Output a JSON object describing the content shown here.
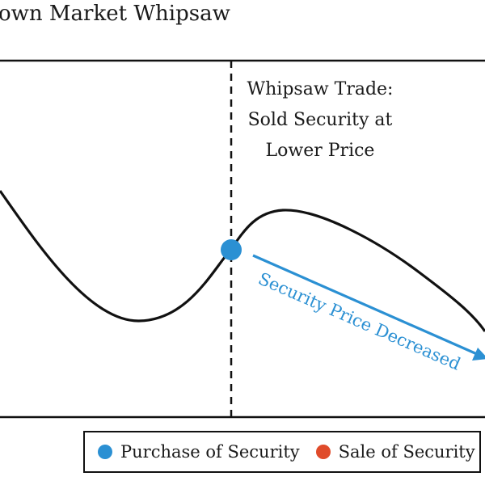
{
  "title": "own Market Whipsaw",
  "annotation": {
    "lines": [
      "Whipsaw Trade:",
      "Sold Security at",
      "Lower Price"
    ]
  },
  "arrow_label": "Security Price Decreased",
  "legend": {
    "items": [
      {
        "label": "Purchase of Security",
        "color": "#2b90d3"
      },
      {
        "label": "Sale of Security",
        "color": "#e04b2a"
      }
    ]
  },
  "colors": {
    "curve": "#111111",
    "accent": "#2b90d3",
    "sale": "#e04b2a",
    "frame": "#111111"
  }
}
